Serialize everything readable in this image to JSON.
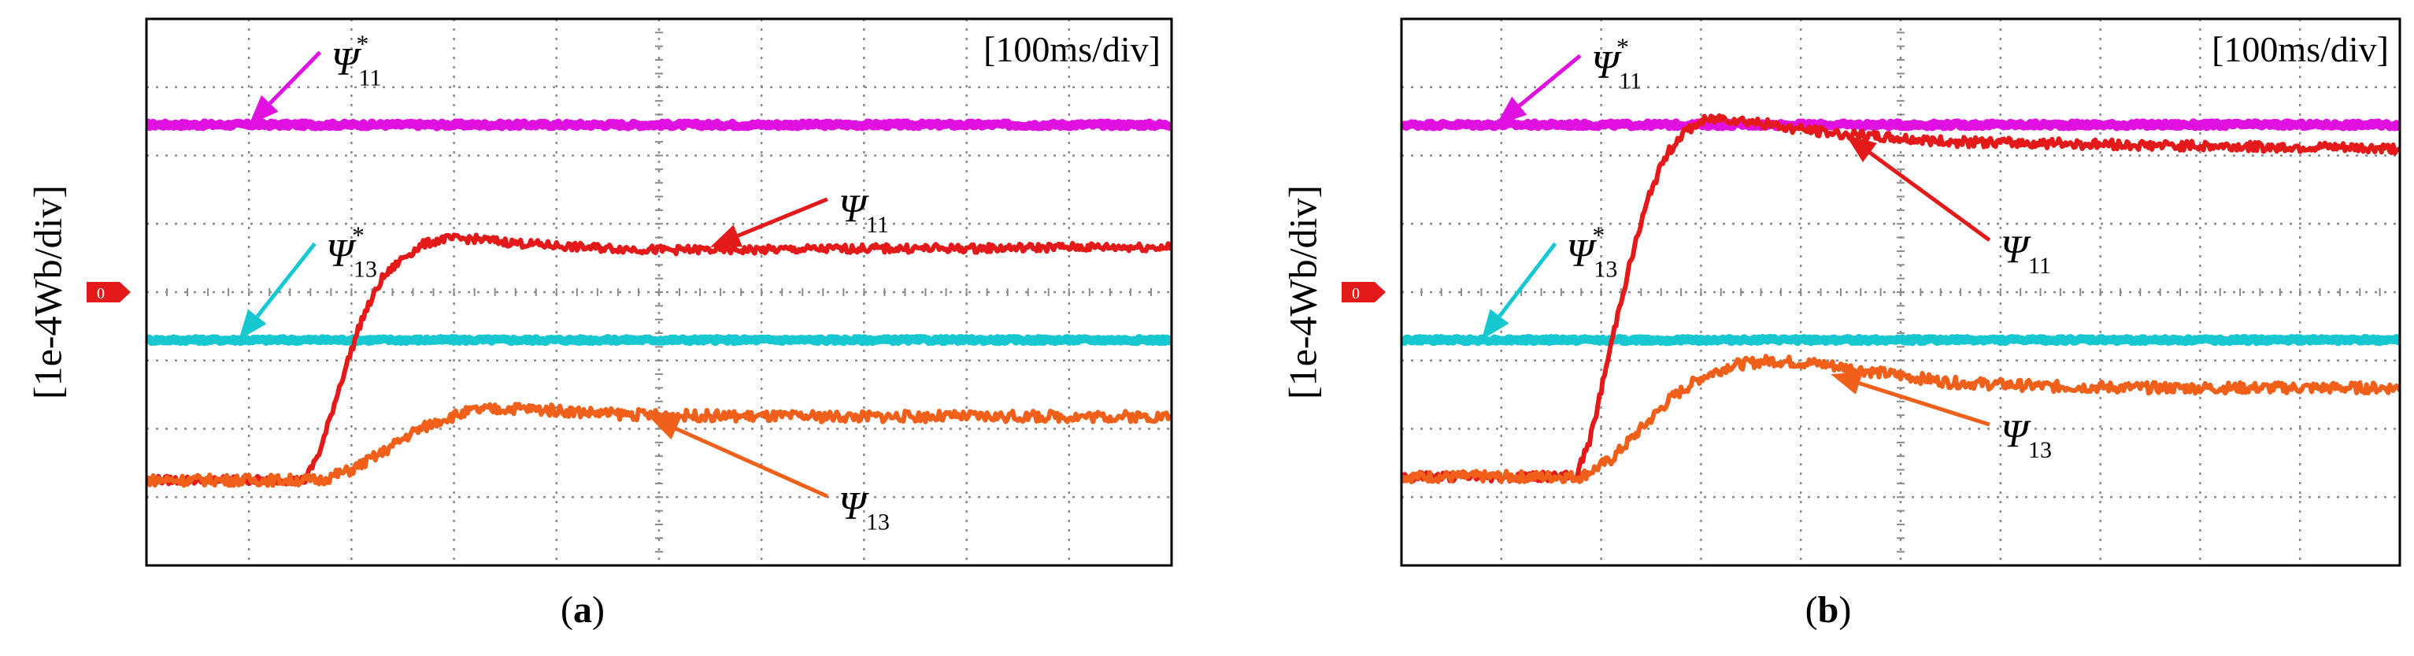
{
  "figure": {
    "panels": [
      {
        "label_open": "(",
        "label": "a",
        "label_close": ")"
      },
      {
        "label_open": "(",
        "label": "b",
        "label_close": ")"
      }
    ]
  },
  "colors": {
    "psi11_ref": "#e010e0",
    "psi13_ref": "#18c8d0",
    "psi11": "#e41a1a",
    "psi13": "#f0601a",
    "grid": "#8a8a8a",
    "frame": "#000000",
    "marker": "#e41a1a"
  },
  "chart_data": [
    {
      "type": "line",
      "panel": "a",
      "time_scale": "[100ms/div]",
      "ylabel": "[1e-4Wb/div]",
      "ground_marker": "0",
      "x_divisions": 10,
      "y_divisions": 8,
      "xlim": [
        0,
        10
      ],
      "ylim": [
        -4,
        4
      ],
      "series": [
        {
          "key": "psi11_ref",
          "name": "Ψ11*",
          "symbol": "Ψ",
          "sub": "11",
          "sup": "*",
          "x": [
            0,
            10
          ],
          "y": [
            2.45,
            2.45
          ],
          "noise": 0.03
        },
        {
          "key": "psi13_ref",
          "name": "Ψ13*",
          "symbol": "Ψ",
          "sub": "13",
          "sup": "*",
          "x": [
            0,
            10
          ],
          "y": [
            -0.7,
            -0.7
          ],
          "noise": 0.025
        },
        {
          "key": "psi11",
          "name": "Ψ11",
          "symbol": "Ψ",
          "sub": "11",
          "sup": "",
          "x": [
            0,
            1.55,
            1.7,
            1.9,
            2.1,
            2.3,
            2.5,
            2.7,
            2.9,
            3.2,
            3.6,
            4.2,
            5,
            6,
            7,
            8,
            9,
            10
          ],
          "y": [
            -2.75,
            -2.75,
            -2.3,
            -1.3,
            -0.4,
            0.2,
            0.5,
            0.7,
            0.78,
            0.78,
            0.72,
            0.66,
            0.62,
            0.62,
            0.64,
            0.64,
            0.66,
            0.66
          ],
          "noise": 0.06
        },
        {
          "key": "psi13",
          "name": "Ψ13",
          "symbol": "Ψ",
          "sub": "13",
          "sup": "",
          "x": [
            0,
            1.7,
            2.0,
            2.3,
            2.6,
            2.9,
            3.2,
            3.6,
            4.0,
            4.5,
            5,
            6,
            7,
            8,
            9,
            10
          ],
          "y": [
            -2.75,
            -2.75,
            -2.6,
            -2.35,
            -2.05,
            -1.85,
            -1.73,
            -1.7,
            -1.73,
            -1.78,
            -1.8,
            -1.82,
            -1.82,
            -1.82,
            -1.82,
            -1.82
          ],
          "noise": 0.08
        }
      ],
      "annotations": [
        {
          "series": "psi11_ref",
          "label_x": 1.8,
          "label_y": 3.35,
          "tip_x": 1.0,
          "tip_y": 2.45
        },
        {
          "series": "psi13_ref",
          "label_x": 1.75,
          "label_y": 0.55,
          "tip_x": 0.9,
          "tip_y": -0.7
        },
        {
          "series": "psi11",
          "label_x": 6.75,
          "label_y": 1.2,
          "tip_x": 5.5,
          "tip_y": 0.66
        },
        {
          "series": "psi13",
          "label_x": 6.75,
          "label_y": -3.15,
          "tip_x": 4.9,
          "tip_y": -1.82
        }
      ]
    },
    {
      "type": "line",
      "panel": "b",
      "time_scale": "[100ms/div]",
      "ylabel": "[1e-4Wb/div]",
      "ground_marker": "0",
      "x_divisions": 10,
      "y_divisions": 8,
      "xlim": [
        0,
        10
      ],
      "ylim": [
        -4,
        4
      ],
      "series": [
        {
          "key": "psi11_ref",
          "name": "Ψ11*",
          "symbol": "Ψ",
          "sub": "11",
          "sup": "*",
          "x": [
            0,
            10
          ],
          "y": [
            2.45,
            2.45
          ],
          "noise": 0.03
        },
        {
          "key": "psi13_ref",
          "name": "Ψ13*",
          "symbol": "Ψ",
          "sub": "13",
          "sup": "*",
          "x": [
            0,
            10
          ],
          "y": [
            -0.7,
            -0.7
          ],
          "noise": 0.025
        },
        {
          "key": "psi11",
          "name": "Ψ11",
          "symbol": "Ψ",
          "sub": "11",
          "sup": "",
          "x": [
            0,
            1.75,
            1.9,
            2.05,
            2.2,
            2.35,
            2.5,
            2.65,
            2.8,
            3.0,
            3.2,
            3.5,
            3.9,
            4.5,
            5.5,
            6.5,
            7.5,
            8.5,
            10
          ],
          "y": [
            -2.7,
            -2.7,
            -2.1,
            -1.1,
            -0.1,
            0.75,
            1.5,
            2.0,
            2.3,
            2.5,
            2.55,
            2.5,
            2.4,
            2.3,
            2.2,
            2.18,
            2.15,
            2.13,
            2.1
          ],
          "noise": 0.07
        },
        {
          "key": "psi13",
          "name": "Ψ13",
          "symbol": "Ψ",
          "sub": "13",
          "sup": "",
          "x": [
            0,
            1.8,
            2.1,
            2.4,
            2.7,
            3.0,
            3.3,
            3.7,
            4.2,
            4.8,
            5.5,
            6.5,
            7.5,
            8.5,
            10
          ],
          "y": [
            -2.7,
            -2.7,
            -2.45,
            -2.0,
            -1.55,
            -1.25,
            -1.07,
            -1.0,
            -1.05,
            -1.18,
            -1.32,
            -1.38,
            -1.4,
            -1.4,
            -1.4
          ],
          "noise": 0.08
        }
      ],
      "annotations": [
        {
          "series": "psi11_ref",
          "label_x": 1.9,
          "label_y": 3.3,
          "tip_x": 0.95,
          "tip_y": 2.45
        },
        {
          "series": "psi13_ref",
          "label_x": 1.65,
          "label_y": 0.55,
          "tip_x": 0.8,
          "tip_y": -0.7
        },
        {
          "series": "psi11",
          "label_x": 6.0,
          "label_y": 0.6,
          "tip_x": 4.45,
          "tip_y": 2.3
        },
        {
          "series": "psi13",
          "label_x": 6.0,
          "label_y": -2.1,
          "tip_x": 4.3,
          "tip_y": -1.2
        }
      ]
    }
  ]
}
